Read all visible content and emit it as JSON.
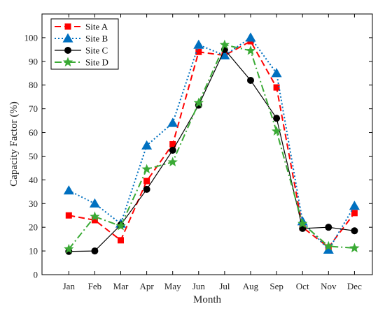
{
  "chart_data": {
    "type": "line",
    "title": "",
    "xlabel": "Month",
    "ylabel": "Capacity Factor (%)",
    "categories": [
      "Jan",
      "Feb",
      "Mar",
      "Apr",
      "May",
      "Jun",
      "Jul",
      "Aug",
      "Sep",
      "Oct",
      "Nov",
      "Dec"
    ],
    "ylim": [
      0,
      110
    ],
    "yticks": [
      0,
      10,
      20,
      30,
      40,
      50,
      60,
      70,
      80,
      90,
      100
    ],
    "grid": false,
    "legend_position": "top-left",
    "series": [
      {
        "name": "Site A",
        "color": "#ff0000",
        "line_style": "dashed",
        "marker": "square",
        "values": [
          25,
          23,
          14.5,
          39.5,
          55,
          94,
          92.5,
          98.5,
          79,
          20,
          11.5,
          26
        ]
      },
      {
        "name": "Site B",
        "color": "#0070c0",
        "line_style": "dotted",
        "marker": "triangle",
        "values": [
          35.5,
          30,
          21.5,
          54.5,
          64,
          97,
          92.5,
          100,
          85,
          22.5,
          10.5,
          29
        ]
      },
      {
        "name": "Site C",
        "color": "#000000",
        "line_style": "solid",
        "marker": "circle",
        "values": [
          9.8,
          10,
          21,
          36,
          52.5,
          71.5,
          95,
          82,
          66,
          19.5,
          20,
          18.5
        ]
      },
      {
        "name": "Site D",
        "color": "#3aaa35",
        "line_style": "dashdot",
        "marker": "star",
        "values": [
          10.8,
          24.5,
          20.5,
          44.5,
          47.5,
          72.5,
          97,
          94.5,
          60.5,
          21.5,
          12,
          11.2
        ]
      }
    ]
  }
}
